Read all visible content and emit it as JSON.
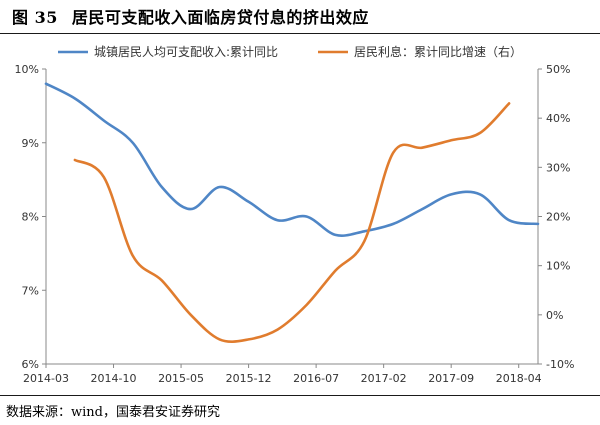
{
  "figure": {
    "label": "图 35",
    "title": "居民可支配收入面临房贷付息的挤出效应",
    "source": "数据来源：wind，国泰君安证券研究"
  },
  "colors": {
    "income": "#4F86C6",
    "interest": "#E07C2E",
    "axis": "#888888",
    "text": "#333333"
  },
  "chart_data": {
    "type": "line",
    "legend_position": "top",
    "grid": false,
    "x_tick_labels": [
      "2014-03",
      "2014-10",
      "2015-05",
      "2015-12",
      "2016-07",
      "2017-02",
      "2017-09",
      "2018-04"
    ],
    "x_range": [
      "2014-03",
      "2018-06"
    ],
    "y_left": {
      "range": [
        6,
        10
      ],
      "ticks": [
        6,
        7,
        8,
        9,
        10
      ],
      "tick_labels": [
        "6%",
        "7%",
        "8%",
        "9%",
        "10%"
      ]
    },
    "y_right": {
      "range": [
        -10,
        50
      ],
      "ticks": [
        -10,
        0,
        10,
        20,
        30,
        40,
        50
      ],
      "tick_labels": [
        "-10%",
        "0%",
        "10%",
        "20%",
        "30%",
        "40%",
        "50%"
      ]
    },
    "series": [
      {
        "name": "城镇居民人均可支配收入:累计同比",
        "axis": "left",
        "unit": "%",
        "points": [
          [
            "2014-03",
            9.8
          ],
          [
            "2014-06",
            9.6
          ],
          [
            "2014-09",
            9.3
          ],
          [
            "2014-12",
            9.0
          ],
          [
            "2015-03",
            8.4
          ],
          [
            "2015-06",
            8.1
          ],
          [
            "2015-09",
            8.4
          ],
          [
            "2015-12",
            8.2
          ],
          [
            "2016-03",
            7.95
          ],
          [
            "2016-06",
            8.0
          ],
          [
            "2016-09",
            7.75
          ],
          [
            "2016-12",
            7.8
          ],
          [
            "2017-03",
            7.9
          ],
          [
            "2017-06",
            8.1
          ],
          [
            "2017-09",
            8.3
          ],
          [
            "2017-12",
            8.3
          ],
          [
            "2018-03",
            7.95
          ],
          [
            "2018-06",
            7.9
          ]
        ]
      },
      {
        "name": "居民利息：累计同比增速（右）",
        "axis": "right",
        "unit": "%",
        "points": [
          [
            "2014-06",
            31.5
          ],
          [
            "2014-09",
            28
          ],
          [
            "2014-12",
            12
          ],
          [
            "2015-03",
            7
          ],
          [
            "2015-06",
            0
          ],
          [
            "2015-09",
            -5
          ],
          [
            "2015-12",
            -5
          ],
          [
            "2016-03",
            -3
          ],
          [
            "2016-06",
            2
          ],
          [
            "2016-09",
            9
          ],
          [
            "2016-12",
            15
          ],
          [
            "2017-03",
            33
          ],
          [
            "2017-06",
            34
          ],
          [
            "2017-09",
            35.5
          ],
          [
            "2017-12",
            37
          ],
          [
            "2018-03",
            43
          ]
        ]
      }
    ]
  }
}
